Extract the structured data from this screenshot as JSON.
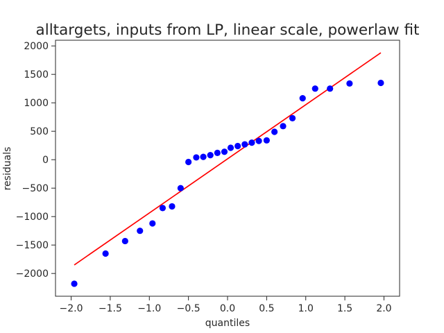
{
  "chart_data": {
    "type": "scatter",
    "title": "alltargets, inputs from LP, linear scale, powerlaw fit",
    "xlabel": "quantiles",
    "ylabel": "residuals",
    "xlim": [
      -2.2,
      2.2
    ],
    "ylim": [
      -2400,
      2100
    ],
    "xticks": [
      -2.0,
      -1.5,
      -1.0,
      -0.5,
      0.0,
      0.5,
      1.0,
      1.5,
      2.0
    ],
    "xtick_labels": [
      "−2.0",
      "−1.5",
      "−1.0",
      "−0.5",
      "0.0",
      "0.5",
      "1.0",
      "1.5",
      "2.0"
    ],
    "yticks": [
      -2000,
      -1500,
      -1000,
      -500,
      0,
      500,
      1000,
      1500,
      2000
    ],
    "ytick_labels": [
      "−2000",
      "−1500",
      "−1000",
      "−500",
      "0",
      "500",
      "1000",
      "1500",
      "2000"
    ],
    "grid": false,
    "series": [
      {
        "kind": "points",
        "color": "#0000ff",
        "x": [
          -1.96,
          -1.56,
          -1.31,
          -1.12,
          -0.96,
          -0.83,
          -0.71,
          -0.6,
          -0.5,
          -0.4,
          -0.31,
          -0.22,
          -0.13,
          -0.04,
          0.04,
          0.13,
          0.22,
          0.31,
          0.4,
          0.5,
          0.6,
          0.71,
          0.83,
          0.96,
          1.12,
          1.31,
          1.56,
          1.96
        ],
        "y": [
          -2180,
          -1650,
          -1430,
          -1250,
          -1120,
          -850,
          -820,
          -500,
          -40,
          40,
          50,
          80,
          120,
          140,
          210,
          240,
          270,
          300,
          330,
          340,
          490,
          590,
          730,
          1080,
          1250,
          1250,
          1340,
          1350
        ]
      },
      {
        "kind": "fit-line",
        "color": "#ff0000",
        "x": [
          -1.96,
          1.96
        ],
        "y": [
          -1850,
          1880
        ]
      }
    ]
  }
}
